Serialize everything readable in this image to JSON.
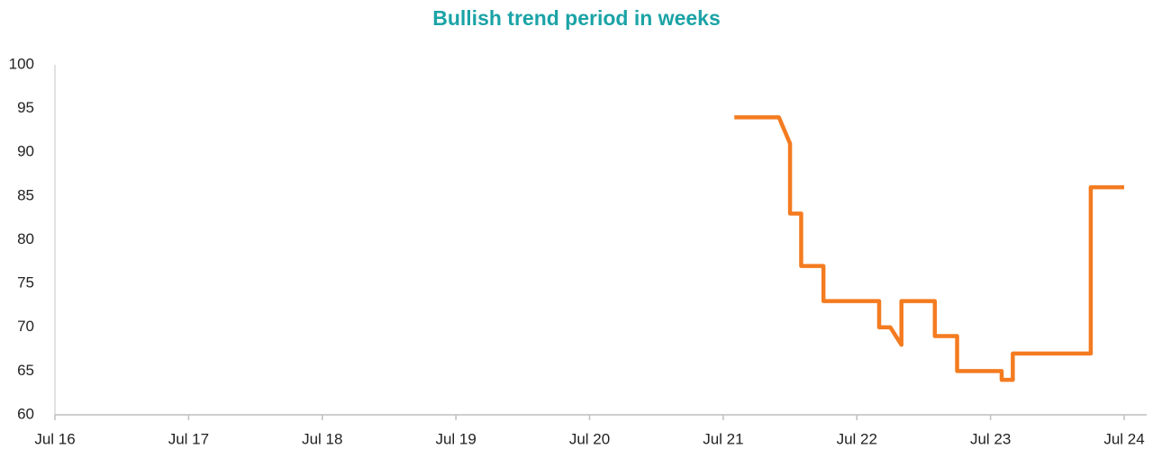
{
  "chart_data": {
    "type": "line",
    "title": "Bullish trend period in weeks",
    "x": [
      "2021-08",
      "2021-12",
      "2022-01",
      "2022-01",
      "2022-02",
      "2022-02",
      "2022-04",
      "2022-04",
      "2022-09",
      "2022-09",
      "2022-10",
      "2022-11",
      "2022-11",
      "2023-02",
      "2023-02",
      "2023-04",
      "2023-04",
      "2023-08",
      "2023-08",
      "2023-09",
      "2023-09",
      "2024-04",
      "2024-04",
      "2024-07"
    ],
    "series": [
      {
        "name": "Bullish trend period",
        "color": "#f47b20",
        "values": [
          94,
          94,
          91,
          83,
          83,
          77,
          77,
          73,
          73,
          70,
          70,
          68,
          73,
          73,
          69,
          69,
          65,
          65,
          64,
          64,
          67,
          67,
          86,
          86
        ]
      }
    ],
    "xlim": [
      "2016-07",
      "2024-07"
    ],
    "xticks": [
      {
        "value": "2016-07",
        "label": "Jul 16"
      },
      {
        "value": "2017-07",
        "label": "Jul 17"
      },
      {
        "value": "2018-07",
        "label": "Jul 18"
      },
      {
        "value": "2019-07",
        "label": "Jul 19"
      },
      {
        "value": "2020-07",
        "label": "Jul 20"
      },
      {
        "value": "2021-07",
        "label": "Jul 21"
      },
      {
        "value": "2022-07",
        "label": "Jul 22"
      },
      {
        "value": "2023-07",
        "label": "Jul 23"
      },
      {
        "value": "2024-07",
        "label": "Jul 24"
      }
    ],
    "ylim": [
      60,
      100
    ],
    "yticks": [
      60,
      65,
      70,
      75,
      80,
      85,
      90,
      95,
      100
    ],
    "grid": false
  }
}
